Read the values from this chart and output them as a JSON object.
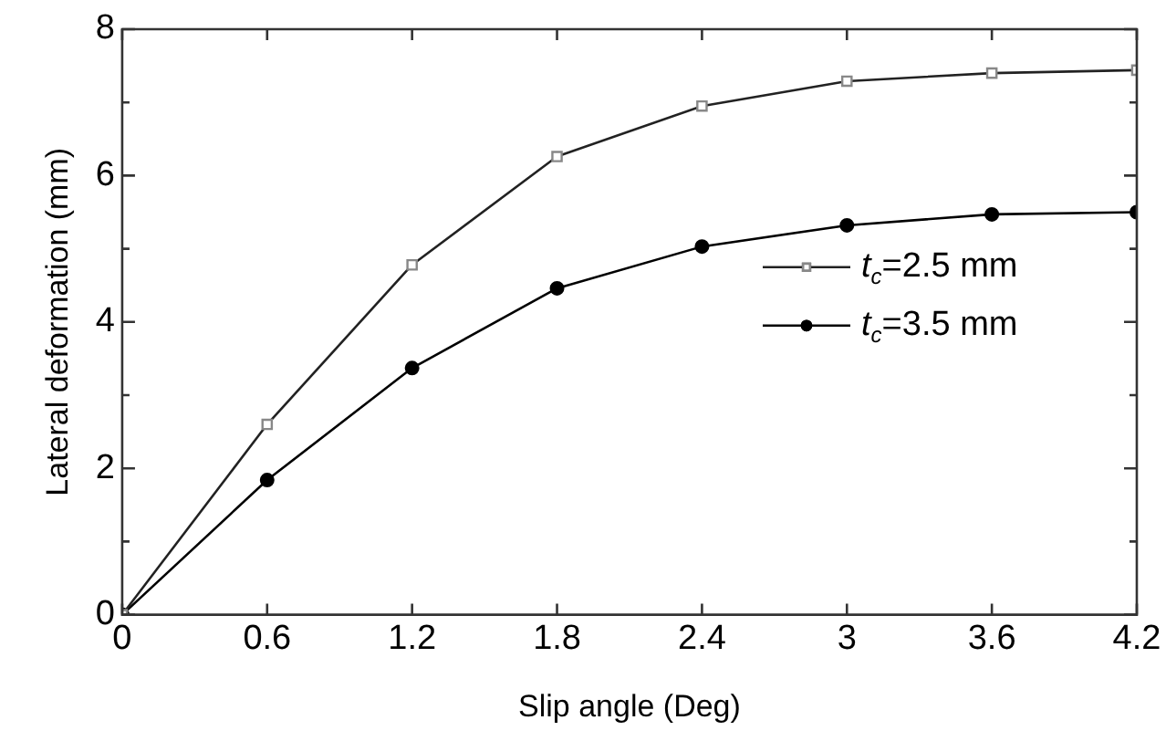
{
  "chart_data": {
    "type": "line",
    "xlabel": "Slip angle (Deg)",
    "ylabel": "Lateral deformation (mm)",
    "x": [
      0,
      0.6,
      1.2,
      1.8,
      2.4,
      3,
      3.6,
      4.2
    ],
    "series": [
      {
        "name": "t$_{c}$=2.5 mm",
        "color": "#222222",
        "marker": "square",
        "values": [
          0,
          2.6,
          4.78,
          6.26,
          6.95,
          7.29,
          7.4,
          7.44
        ]
      },
      {
        "name": "t$_{c}$=3.5 mm",
        "color": "#000000",
        "marker": "circle",
        "values": [
          0,
          1.84,
          3.37,
          4.46,
          5.03,
          5.32,
          5.47,
          5.5
        ]
      }
    ],
    "xlim": [
      0,
      4.2
    ],
    "xticks": [
      0,
      0.6,
      1.2,
      1.8,
      2.4,
      3,
      3.6,
      4.2
    ],
    "ylim": [
      0,
      8
    ],
    "yticks": [
      0,
      {
        "value": 1,
        "label": null
      },
      2,
      {
        "value": 3,
        "label": null
      },
      4,
      {
        "value": 5,
        "label": null
      },
      6,
      {
        "value": 7,
        "label": null
      },
      8
    ],
    "grid": false,
    "legend": "right",
    "line_style": "solid"
  }
}
